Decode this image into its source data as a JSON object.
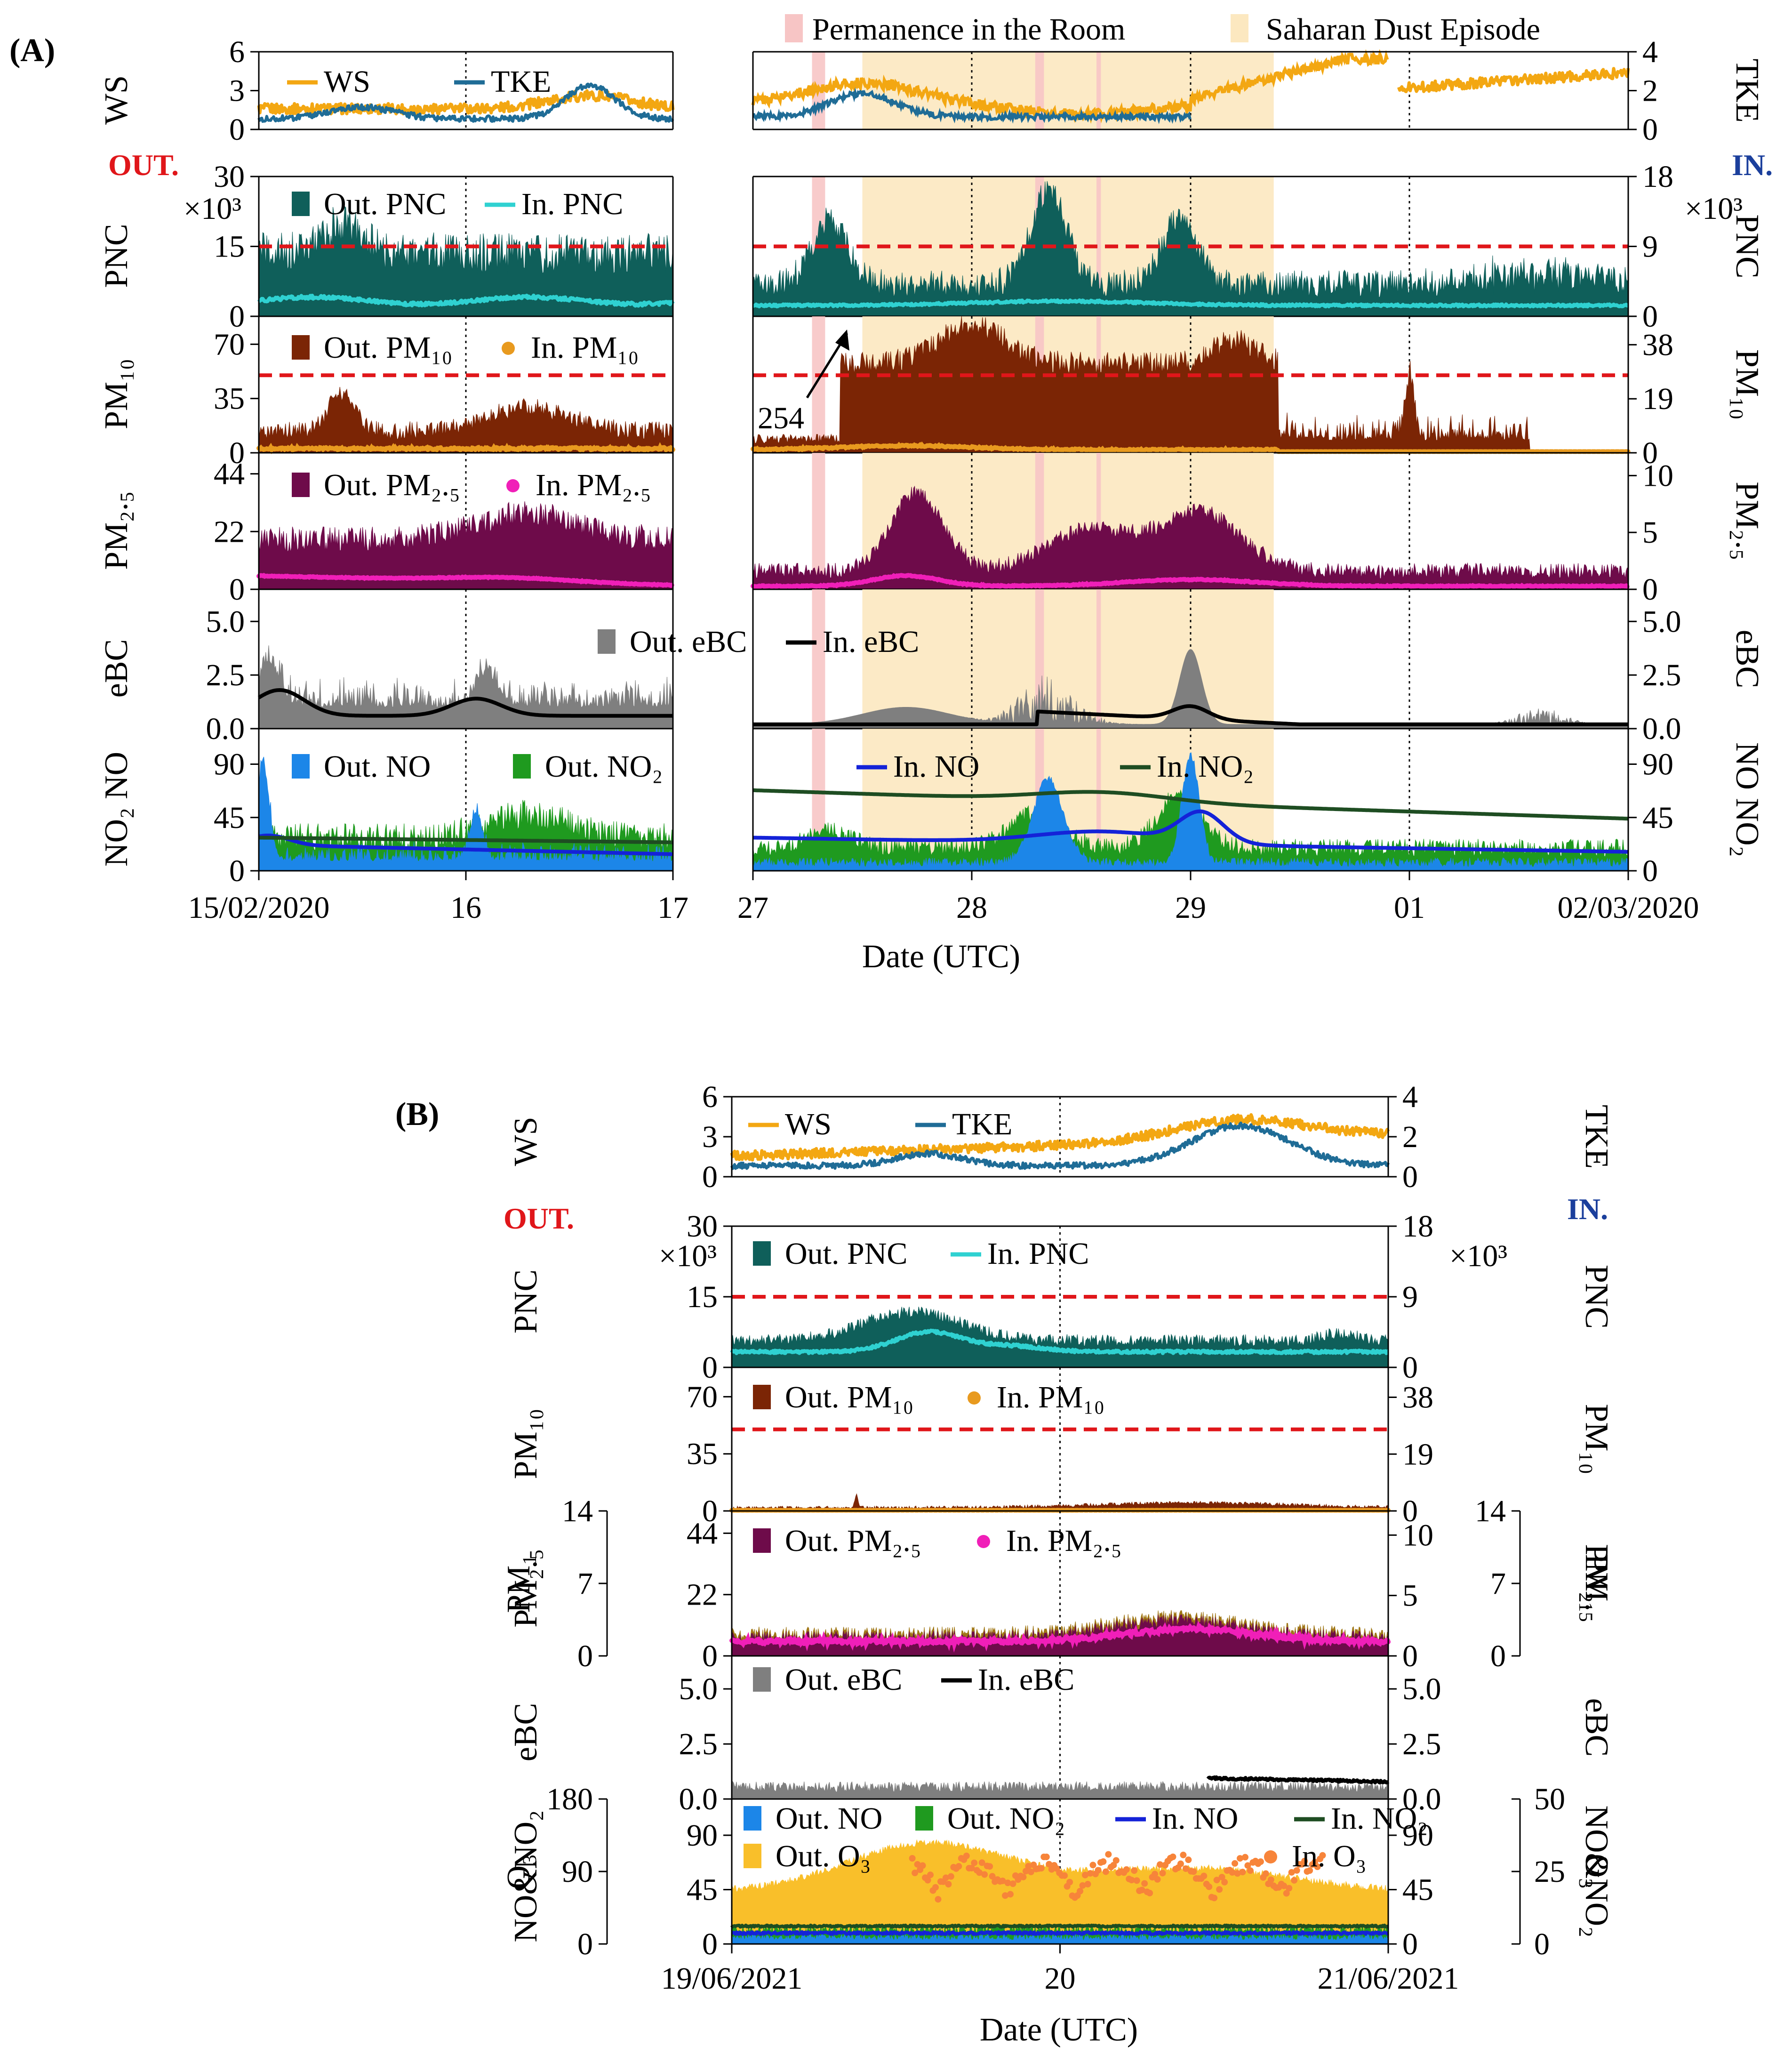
{
  "chart_data": [
    {
      "type": "area",
      "panel_label": "(A)",
      "side_labels": {
        "outdoor": "OUT.",
        "indoor": "IN."
      },
      "xlabel": "Date (UTC)",
      "segments": [
        {
          "range_days": [
            0,
            2
          ],
          "x_ticks": [
            {
              "t": 0,
              "label": "15/02/2020"
            },
            {
              "t": 1,
              "label": "16"
            },
            {
              "t": 2,
              "label": "17"
            }
          ]
        },
        {
          "range_days": [
            0,
            4
          ],
          "x_ticks": [
            {
              "t": 0,
              "label": "27"
            },
            {
              "t": 1,
              "label": "28"
            },
            {
              "t": 2,
              "label": "29"
            },
            {
              "t": 3,
              "label": "01"
            },
            {
              "t": 4,
              "label": "02/03/2020"
            }
          ]
        }
      ],
      "shading_legend": [
        {
          "name": "Permanence in the Room",
          "color": "#f7c5c5"
        },
        {
          "name": "Saharan Dust Episode",
          "color": "#fce8c0"
        }
      ],
      "shading": {
        "dust": [
          [
            0.5,
            2.38
          ]
        ],
        "room": [
          [
            0.27,
            0.33
          ],
          [
            1.29,
            1.33
          ],
          [
            1.57,
            1.59
          ]
        ]
      },
      "annotation": {
        "text": "254",
        "points_to_day": 0.45
      },
      "panels": [
        {
          "name": "WS / TKE",
          "left_label": "WS",
          "right_label": "TKE",
          "ylim_left": [
            0,
            6
          ],
          "yticks_left": [
            "0",
            "3",
            "6"
          ],
          "ylim_right": [
            0,
            4
          ],
          "yticks_right": [
            "0",
            "2",
            "4"
          ],
          "series": [
            {
              "name": "WS",
              "style": "line",
              "color": "#f3a712"
            },
            {
              "name": "TKE",
              "style": "line",
              "color": "#1f6c96"
            }
          ]
        },
        {
          "name": "PNC",
          "left_label": "PNC",
          "right_label": "PNC",
          "ylim_left": [
            0,
            30000
          ],
          "yticks_left": [
            "0",
            "15",
            "30"
          ],
          "left_exp": "×10³",
          "ylim_right": [
            0,
            18000
          ],
          "yticks_right": [
            "0",
            "9",
            "18"
          ],
          "right_exp": "×10³",
          "threshold": 15000,
          "series": [
            {
              "name": "Out. PNC",
              "style": "area",
              "color": "#0f5f5a"
            },
            {
              "name": "In. PNC",
              "style": "line",
              "color": "#2fd1d1"
            }
          ]
        },
        {
          "name": "PM10",
          "left_label": "PM₁₀",
          "right_label": "PM₁₀",
          "ylim_left": [
            0,
            88
          ],
          "yticks_left": [
            "0",
            "35",
            "70"
          ],
          "ylim_right": [
            0,
            48
          ],
          "yticks_right": [
            "0",
            "19",
            "38"
          ],
          "threshold": 50,
          "series": [
            {
              "name": "Out. PM₁₀",
              "style": "area",
              "color": "#7b2505"
            },
            {
              "name": "In. PM₁₀",
              "style": "dots",
              "color": "#e89a1f"
            }
          ]
        },
        {
          "name": "PM2.5",
          "left_label": "PM₂.₅",
          "right_label": "PM₂.₅",
          "ylim_left": [
            0,
            52
          ],
          "yticks_left": [
            "0",
            "22",
            "44"
          ],
          "ylim_right": [
            0,
            12
          ],
          "yticks_right": [
            "0",
            "5",
            "10"
          ],
          "series": [
            {
              "name": "Out. PM₂.₅",
              "style": "area",
              "color": "#6e0b4a"
            },
            {
              "name": "In. PM₂.₅",
              "style": "dots",
              "color": "#f01fb8"
            }
          ]
        },
        {
          "name": "eBC",
          "left_label": "eBC",
          "right_label": "eBC",
          "ylim_left": [
            0,
            6.5
          ],
          "yticks_left": [
            "0.0",
            "2.5",
            "5.0"
          ],
          "ylim_right": [
            0,
            6.5
          ],
          "yticks_right": [
            "0.0",
            "2.5",
            "5.0"
          ],
          "series": [
            {
              "name": "Out. eBC",
              "style": "area",
              "color": "#7f7f7f"
            },
            {
              "name": "In. eBC",
              "style": "line",
              "color": "#000000"
            }
          ]
        },
        {
          "name": "NO / NO2",
          "left_label": "NO₂ NO",
          "right_label": "NO NO₂",
          "ylim_left": [
            0,
            120
          ],
          "yticks_left": [
            "0",
            "45",
            "90"
          ],
          "ylim_right": [
            0,
            120
          ],
          "yticks_right": [
            "0",
            "45",
            "90"
          ],
          "series": [
            {
              "name": "Out. NO",
              "style": "area",
              "color": "#1c86e8"
            },
            {
              "name": "Out. NO₂",
              "style": "area",
              "color": "#1f9a1f"
            },
            {
              "name": "In. NO",
              "style": "line",
              "color": "#1422d8"
            },
            {
              "name": "In. NO₂",
              "style": "line",
              "color": "#1e4d22"
            }
          ]
        }
      ]
    },
    {
      "type": "area",
      "panel_label": "(B)",
      "side_labels": {
        "outdoor": "OUT.",
        "indoor": "IN."
      },
      "xlabel": "Date (UTC)",
      "segments": [
        {
          "range_days": [
            0,
            2
          ],
          "x_ticks": [
            {
              "t": 0,
              "label": "19/06/2021"
            },
            {
              "t": 1,
              "label": "20"
            },
            {
              "t": 2,
              "label": "21/06/2021"
            }
          ]
        }
      ],
      "panels": [
        {
          "name": "WS / TKE",
          "left_label": "WS",
          "right_label": "TKE",
          "ylim_left": [
            0,
            6
          ],
          "yticks_left": [
            "0",
            "3",
            "6"
          ],
          "ylim_right": [
            0,
            4
          ],
          "yticks_right": [
            "0",
            "2",
            "4"
          ],
          "series": [
            {
              "name": "WS",
              "style": "line",
              "color": "#f3a712"
            },
            {
              "name": "TKE",
              "style": "line",
              "color": "#1f6c96"
            }
          ]
        },
        {
          "name": "PNC",
          "left_label": "PNC",
          "right_label": "PNC",
          "ylim_left": [
            0,
            30000
          ],
          "yticks_left": [
            "0",
            "15",
            "30"
          ],
          "left_exp": "×10³",
          "ylim_right": [
            0,
            18000
          ],
          "yticks_right": [
            "0",
            "9",
            "18"
          ],
          "right_exp": "×10³",
          "threshold": 15000,
          "series": [
            {
              "name": "Out. PNC",
              "style": "area",
              "color": "#0f5f5a"
            },
            {
              "name": "In. PNC",
              "style": "line",
              "color": "#2fd1d1"
            }
          ]
        },
        {
          "name": "PM10",
          "left_label": "PM₁₀",
          "right_label": "PM₁₀",
          "ylim_left": [
            0,
            88
          ],
          "yticks_left": [
            "0",
            "35",
            "70"
          ],
          "ylim_right": [
            0,
            48
          ],
          "yticks_right": [
            "0",
            "19",
            "38"
          ],
          "threshold": 50,
          "series": [
            {
              "name": "Out. PM₁₀",
              "style": "area",
              "color": "#7b2505"
            },
            {
              "name": "In. PM₁₀",
              "style": "dots",
              "color": "#e89a1f"
            }
          ]
        },
        {
          "name": "PM2.5 / PM1",
          "left_label": "PM₂.₅",
          "right_label": "PM₂.₅",
          "extra_left": "PM₁",
          "extra_right": "PM₁",
          "ylim_left": [
            0,
            52
          ],
          "yticks_left": [
            "0",
            "22",
            "44"
          ],
          "ylim_right": [
            0,
            12
          ],
          "yticks_right": [
            "0",
            "5",
            "10"
          ],
          "ylim_extra": [
            0,
            14
          ],
          "yticks_extra": [
            "0",
            "7",
            "14"
          ],
          "series": [
            {
              "name": "Out. PM₂.₅",
              "style": "area",
              "color": "#6e0b4a"
            },
            {
              "name": "In. PM₂.₅",
              "style": "dots",
              "color": "#f01fb8"
            }
          ]
        },
        {
          "name": "eBC",
          "left_label": "eBC",
          "right_label": "eBC",
          "ylim_left": [
            0,
            6.5
          ],
          "yticks_left": [
            "0.0",
            "2.5",
            "5.0"
          ],
          "ylim_right": [
            0,
            6.5
          ],
          "yticks_right": [
            "0.0",
            "2.5",
            "5.0"
          ],
          "series": [
            {
              "name": "Out. eBC",
              "style": "area",
              "color": "#7f7f7f"
            },
            {
              "name": "In. eBC",
              "style": "line",
              "color": "#000000"
            }
          ]
        },
        {
          "name": "NO&NO2 / O3",
          "left_label": "NO&NO₂",
          "right_label": "NO&NO₂",
          "extra_left": "O₃",
          "extra_right": "O₃",
          "ylim_left": [
            0,
            120
          ],
          "yticks_left": [
            "0",
            "45",
            "90"
          ],
          "ylim_right": [
            0,
            120
          ],
          "yticks_right": [
            "0",
            "45",
            "90"
          ],
          "ylim_extra_left": [
            0,
            180
          ],
          "yticks_extra_left": [
            "0",
            "90",
            "180"
          ],
          "ylim_extra_right": [
            0,
            50
          ],
          "yticks_extra_right": [
            "0",
            "25",
            "50"
          ],
          "series": [
            {
              "name": "Out. NO",
              "style": "area",
              "color": "#1c86e8"
            },
            {
              "name": "Out. NO₂",
              "style": "area",
              "color": "#1f9a1f"
            },
            {
              "name": "In. NO",
              "style": "line",
              "color": "#1422d8"
            },
            {
              "name": "In. NO₂",
              "style": "line",
              "color": "#1e4d22"
            },
            {
              "name": "Out. O₃",
              "style": "area",
              "color": "#f9bf2a"
            },
            {
              "name": "In. O₃",
              "style": "dots",
              "color": "#f7843a"
            }
          ]
        }
      ]
    }
  ]
}
